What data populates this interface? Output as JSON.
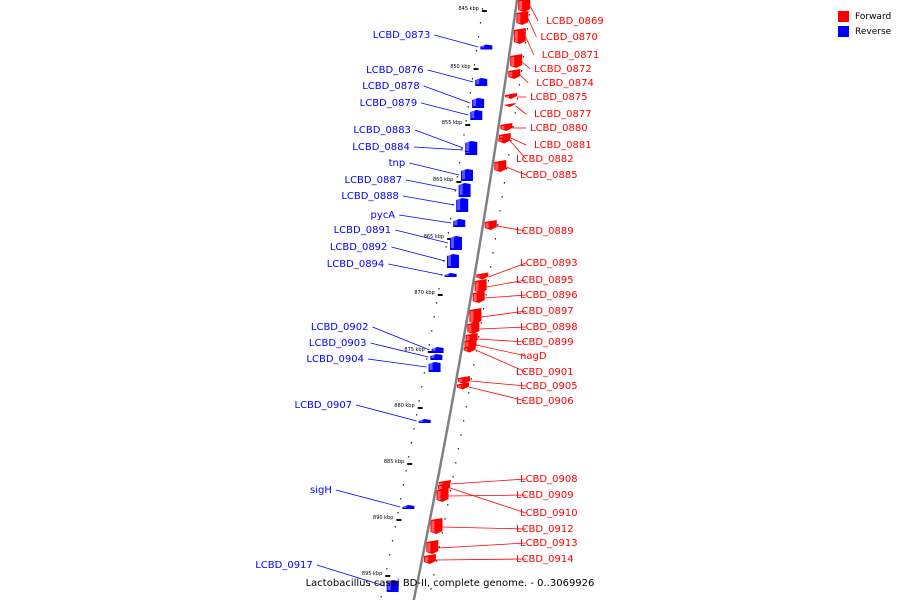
{
  "caption": "Lactobacillus casei BD-II, complete genome. - 0..3069926",
  "legend": [
    {
      "label": "Forward",
      "color": "#ff0000"
    },
    {
      "label": "Reverse",
      "color": "#0000ff"
    }
  ],
  "colors": {
    "forward": "#ff0000",
    "reverse": "#0000ff",
    "backbone": "#808080"
  },
  "kbp_labels": [
    "845 kbp",
    "850 kbp",
    "855 kbp",
    "860 kbp",
    "865 kbp",
    "870 kbp",
    "875 kbp",
    "880 kbp",
    "885 kbp",
    "890 kbp",
    "895 kbp"
  ],
  "forward_genes": [
    "LCBD_0869",
    "LCBD_0870",
    "LCBD_0871",
    "LCBD_0872",
    "LCBD_0874",
    "LCBD_0875",
    "LCBD_0877",
    "LCBD_0880",
    "LCBD_0881",
    "LCBD_0882",
    "LCBD_0885",
    "LCBD_0889",
    "LCBD_0893",
    "LCBD_0895",
    "LCBD_0896",
    "LCBD_0897",
    "LCBD_0898",
    "LCBD_0899",
    "nagD",
    "LCBD_0901",
    "LCBD_0905",
    "LCBD_0906",
    "LCBD_0908",
    "LCBD_0909",
    "LCBD_0910",
    "LCBD_0912",
    "LCBD_0913",
    "LCBD_0914"
  ],
  "reverse_genes": [
    "LCBD_0873",
    "LCBD_0876",
    "LCBD_0878",
    "LCBD_0879",
    "LCBD_0883",
    "LCBD_0884",
    "tnp",
    "LCBD_0887",
    "LCBD_0888",
    "pycA",
    "LCBD_0891",
    "LCBD_0892",
    "LCBD_0894",
    "LCBD_0902",
    "LCBD_0903",
    "LCBD_0904",
    "LCBD_0907",
    "sigH",
    "LCBD_0917"
  ]
}
